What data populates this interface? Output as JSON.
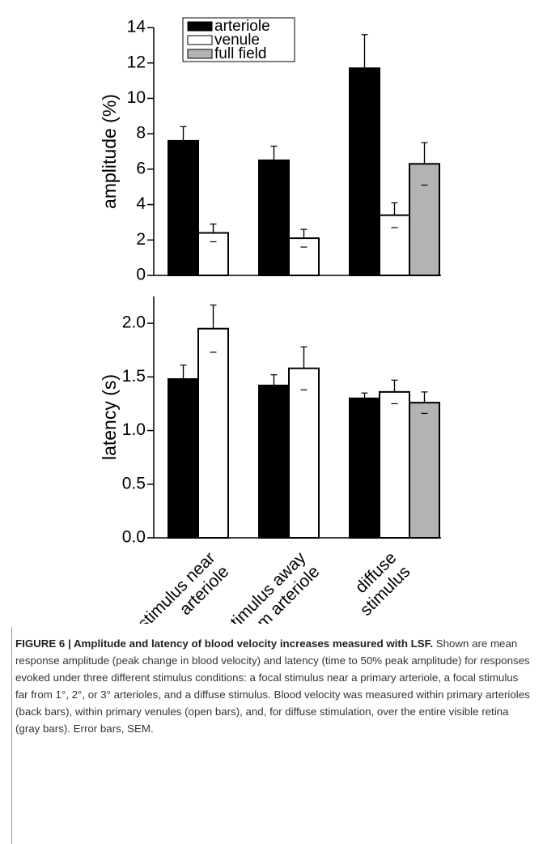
{
  "chart_data": [
    {
      "type": "bar",
      "ylabel": "amplitude (%)",
      "ylim": [
        0,
        14
      ],
      "yticks": [
        0,
        2,
        4,
        6,
        8,
        10,
        12,
        14
      ],
      "legend": "top-left",
      "series": [
        {
          "name": "arteriole",
          "color": "#000000",
          "values": [
            7.6,
            6.5,
            11.7
          ],
          "errors": [
            0.8,
            0.8,
            1.9
          ]
        },
        {
          "name": "venule",
          "color": "#ffffff",
          "values": [
            2.4,
            2.1,
            3.4
          ],
          "errors": [
            0.5,
            0.5,
            0.7
          ]
        },
        {
          "name": "full field",
          "color": "#b3b3b3",
          "values": [
            null,
            null,
            6.3
          ],
          "errors": [
            null,
            null,
            1.2
          ]
        }
      ]
    },
    {
      "type": "bar",
      "ylabel": "latency (s)",
      "categories": [
        [
          "stimulus near",
          "arteriole"
        ],
        [
          "stimulus away",
          "from arteriole"
        ],
        [
          "diffuse",
          "stimulus"
        ]
      ],
      "ylim": [
        0,
        2.25
      ],
      "yticks": [
        {
          "value": 0,
          "label": "0.0"
        },
        0.5,
        {
          "value": 1,
          "label": "1.0"
        },
        1.5,
        {
          "value": 2,
          "label": "2.0"
        }
      ],
      "series": [
        {
          "color": "#000000",
          "values": [
            1.48,
            1.42,
            1.3
          ],
          "errors": [
            0.13,
            0.1,
            0.05
          ]
        },
        {
          "color": "#ffffff",
          "values": [
            1.95,
            1.58,
            1.36
          ],
          "errors": [
            0.22,
            0.2,
            0.11
          ]
        },
        {
          "color": "#b3b3b3",
          "values": [
            null,
            null,
            1.26
          ],
          "errors": [
            null,
            null,
            0.1
          ]
        }
      ]
    }
  ],
  "caption": {
    "label": "FIGURE 6 | Amplitude and latency of blood velocity increases measured with LSF.",
    "text": "Shown are mean response amplitude (peak change in blood velocity) and latency (time to 50% peak amplitude) for responses evoked under three different stimulus conditions: a focal stimulus near a primary arteriole, a focal stimulus far from 1°, 2°, or 3° arterioles, and a diffuse stimulus. Blood velocity was measured within primary arterioles (back bars), within primary venules (open bars), and, for diffuse stimulation, over the entire visible retina (gray bars). Error bars, SEM."
  }
}
